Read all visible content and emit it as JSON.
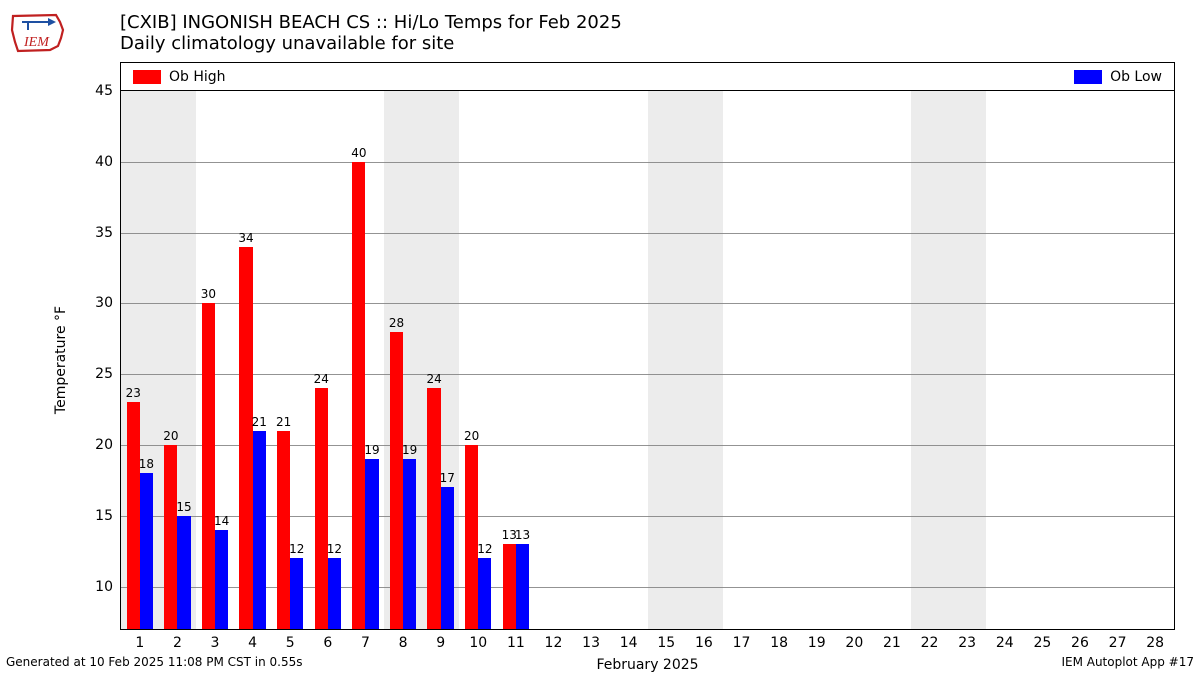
{
  "title": {
    "line1": "[CXIB] INGONISH BEACH CS :: Hi/Lo Temps for Feb 2025",
    "line2": "Daily climatology unavailable for site",
    "fontsize": 18
  },
  "logo": {
    "text": "IEM",
    "outline_color": "#c02020",
    "accent_color": "#1e50a2"
  },
  "legend": {
    "items": [
      {
        "label": "Ob High",
        "color": "#ff0000"
      },
      {
        "label": "Ob Low",
        "color": "#0000ff"
      }
    ],
    "fontsize": 14
  },
  "chart": {
    "type": "bar",
    "background_color": "#ffffff",
    "weekend_band_color": "#ececec",
    "grid_color": "#808080",
    "axis_color": "#000000",
    "ylabel": "Temperature °F",
    "xlabel": "February 2025",
    "ylim": [
      7,
      45
    ],
    "yticks": [
      10,
      15,
      20,
      25,
      30,
      35,
      40,
      45
    ],
    "x_days": [
      1,
      2,
      3,
      4,
      5,
      6,
      7,
      8,
      9,
      10,
      11,
      12,
      13,
      14,
      15,
      16,
      17,
      18,
      19,
      20,
      21,
      22,
      23,
      24,
      25,
      26,
      27,
      28
    ],
    "x_range_padding": 0.5,
    "bar_width": 0.35,
    "high_color": "#ff0000",
    "low_color": "#0000ff",
    "label_fontsize": 12,
    "tick_fontsize": 14,
    "weekend_days": [
      1,
      2,
      8,
      9,
      15,
      16,
      22,
      23
    ],
    "data": [
      {
        "day": 1,
        "high": 23,
        "low": 18
      },
      {
        "day": 2,
        "high": 20,
        "low": 15
      },
      {
        "day": 3,
        "high": 30,
        "low": 14
      },
      {
        "day": 4,
        "high": 34,
        "low": 21
      },
      {
        "day": 5,
        "high": 21,
        "low": 12
      },
      {
        "day": 6,
        "high": 24,
        "low": 12
      },
      {
        "day": 7,
        "high": 40,
        "low": 19
      },
      {
        "day": 8,
        "high": 28,
        "low": 19
      },
      {
        "day": 9,
        "high": 24,
        "low": 17
      },
      {
        "day": 10,
        "high": 20,
        "low": 12
      },
      {
        "day": 11,
        "high": 13,
        "low": 13
      }
    ]
  },
  "footer": {
    "left": "Generated at 10 Feb 2025 11:08 PM CST in 0.55s",
    "right": "IEM Autoplot App #17",
    "fontsize": 12
  }
}
